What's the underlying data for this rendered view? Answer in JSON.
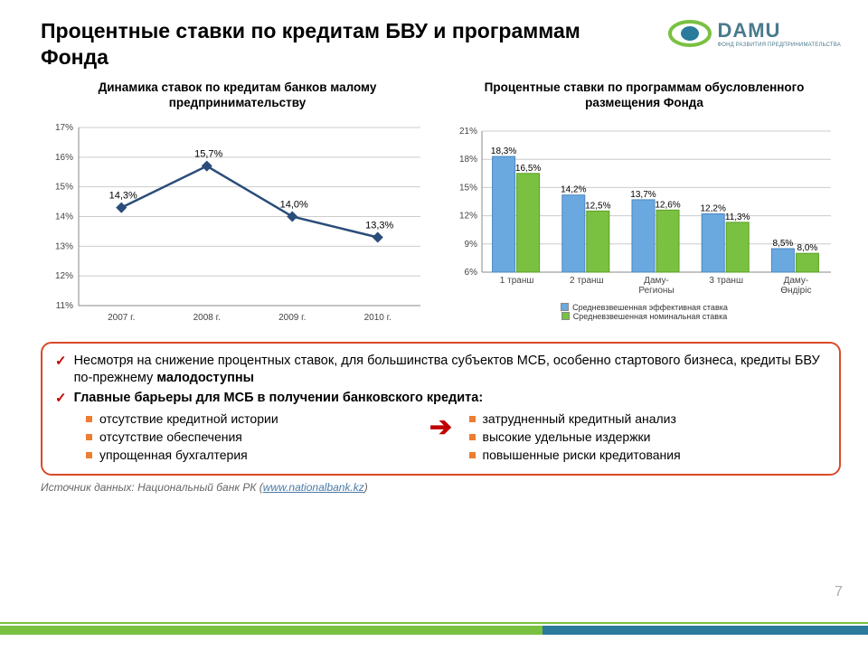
{
  "title": "Процентные ставки по кредитам БВУ и программам Фонда",
  "logo": {
    "main": "DAMU",
    "sub": "ФОНД РАЗВИТИЯ ПРЕДПРИНИМАТЕЛЬСТВА",
    "ring_color": "#7ac142",
    "center_color": "#2a7a9c"
  },
  "line_chart": {
    "title": "Динамика ставок по кредитам банков малому предпринимательству",
    "type": "line",
    "categories": [
      "2007 г.",
      "2008 г.",
      "2009 г.",
      "2010 г."
    ],
    "values": [
      14.3,
      15.7,
      14.0,
      13.3
    ],
    "data_labels": [
      "14,3%",
      "15,7%",
      "14,0%",
      "13,3%"
    ],
    "ylim": [
      11,
      17
    ],
    "ytick_step": 1,
    "y_suffix": "%",
    "line_color": "#2a4d7a",
    "marker_fill": "#2a4d7a",
    "grid_color": "#cccccc",
    "axis_color": "#888888",
    "label_fontsize": 10
  },
  "bar_chart": {
    "title": "Процентные ставки по программам обусловленного размещения Фонда",
    "type": "grouped-bar",
    "categories": [
      "1 транш",
      "2 транш",
      "Даму-\nРегионы",
      "3 транш",
      "Даму-\nӨндіріс"
    ],
    "series": [
      {
        "name": "Средневзвешенная эффективная ставка",
        "color": "#6aa8e0",
        "border": "#4a88c0",
        "values": [
          18.3,
          14.2,
          13.7,
          12.2,
          8.5
        ],
        "labels": [
          "18,3%",
          "14,2%",
          "13,7%",
          "12,2%",
          "8,5%"
        ]
      },
      {
        "name": "Средневзвешенная номинальная ставка",
        "color": "#7ac142",
        "border": "#5aa122",
        "values": [
          16.5,
          12.5,
          12.6,
          11.3,
          8.0
        ],
        "labels": [
          "16,5%",
          "12,5%",
          "12,6%",
          "11,3%",
          "8,0%"
        ]
      }
    ],
    "ylim": [
      6,
      21
    ],
    "ytick_step": 3,
    "y_suffix": "%",
    "grid_color": "#cccccc",
    "axis_color": "#888888",
    "bar_width": 0.35
  },
  "textbox": {
    "border_color": "#d94a2a",
    "bullets": [
      {
        "text_pre": "Несмотря на снижение процентных ставок, для большинства субъектов МСБ, особенно стартового бизнеса, кредиты БВУ по-прежнему ",
        "text_bold": "малодоступны"
      },
      {
        "text_bold": "Главные барьеры для МСБ в получении банковского кредита:"
      }
    ],
    "left_items": [
      "отсутствие кредитной истории",
      "отсутствие обеспечения",
      "упрощенная бухгалтерия"
    ],
    "right_items": [
      "затрудненный кредитный анализ",
      "высокие удельные издержки",
      "повышенные риски кредитования"
    ],
    "bullet_color": "#ed7d31",
    "check_color": "#c00000",
    "arrow": "➔"
  },
  "source": {
    "prefix": "Источник данных: Национальный  банк РК (",
    "link": "www.nationalbank.kz",
    "suffix": ")"
  },
  "page_number": "7",
  "footer": {
    "color_a": "#7ac142",
    "color_b": "#2a7a9c"
  }
}
